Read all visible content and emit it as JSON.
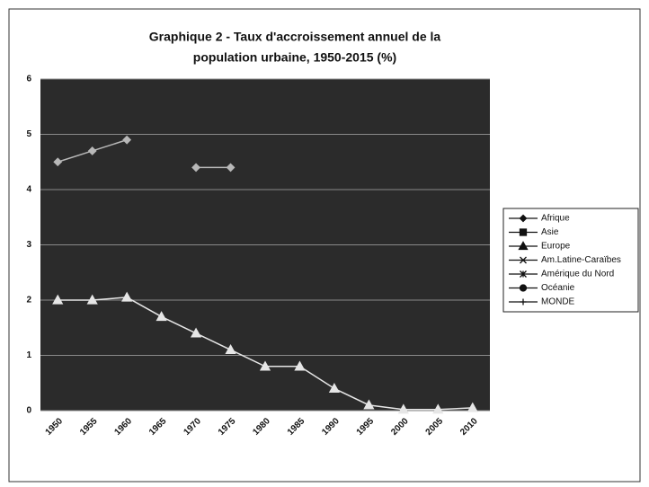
{
  "chart_data": {
    "type": "line",
    "title": [
      "Graphique 2 - Taux d'accroissement annuel de la",
      "population urbaine, 1950-2015 (%)"
    ],
    "categories": [
      "1950",
      "1955",
      "1960",
      "1965",
      "1970",
      "1975",
      "1980",
      "1985",
      "1990",
      "1995",
      "2000",
      "2005",
      "2010"
    ],
    "series": [
      {
        "name": "Afrique",
        "color": "#b8b8b8",
        "marker": "diamond",
        "values": [
          4.5,
          4.7,
          4.9,
          null,
          4.4,
          4.4,
          null,
          null,
          null,
          null,
          null,
          null,
          null
        ]
      },
      {
        "name": "Asie",
        "color": "#111111",
        "marker": "square",
        "values": [
          null,
          null,
          null,
          null,
          null,
          null,
          null,
          null,
          null,
          null,
          null,
          null,
          null
        ]
      },
      {
        "name": "Europe",
        "color": "#e6e6e6",
        "marker": "triangle",
        "values": [
          2.0,
          2.0,
          2.05,
          1.7,
          1.4,
          1.1,
          0.8,
          0.8,
          0.4,
          0.1,
          0.02,
          0.02,
          0.05
        ]
      },
      {
        "name": "Am.Latine-Caraïbes",
        "color": "#111111",
        "marker": "x",
        "values": [
          null,
          null,
          null,
          null,
          null,
          null,
          null,
          null,
          null,
          null,
          null,
          null,
          null
        ]
      },
      {
        "name": "Amérique du Nord",
        "color": "#111111",
        "marker": "star",
        "values": [
          null,
          null,
          null,
          null,
          null,
          null,
          null,
          null,
          null,
          null,
          null,
          null,
          null
        ]
      },
      {
        "name": "Océanie",
        "color": "#111111",
        "marker": "circle",
        "values": [
          null,
          null,
          null,
          null,
          null,
          null,
          null,
          null,
          null,
          null,
          null,
          null,
          null
        ]
      },
      {
        "name": "MONDE",
        "color": "#111111",
        "marker": "plus",
        "values": [
          null,
          null,
          null,
          null,
          null,
          null,
          null,
          null,
          null,
          null,
          null,
          null,
          null
        ]
      }
    ],
    "ylim": [
      0,
      6
    ],
    "yticks": [
      0,
      1,
      2,
      3,
      4,
      5,
      6
    ],
    "grid": true,
    "legend": "right"
  }
}
